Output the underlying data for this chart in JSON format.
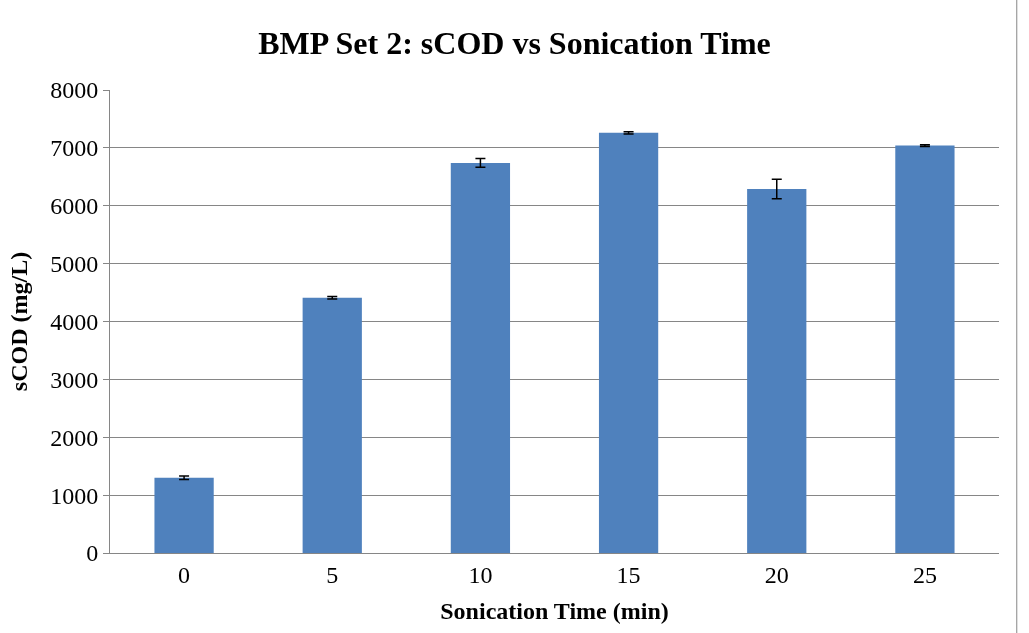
{
  "chart_data": {
    "type": "bar",
    "title": "BMP Set 2: sCOD vs Sonication Time",
    "xlabel": "Sonication Time (min)",
    "ylabel": "sCOD (mg/L)",
    "categories": [
      "0",
      "5",
      "10",
      "15",
      "20",
      "25"
    ],
    "values": [
      1300,
      4410,
      6740,
      7260,
      6290,
      7040
    ],
    "errors": [
      30,
      20,
      75,
      20,
      170,
      15
    ],
    "color": "#4f81bd",
    "ylim": [
      0,
      8000
    ],
    "yticks": [
      0,
      1000,
      2000,
      3000,
      4000,
      5000,
      6000,
      7000,
      8000
    ],
    "grid": "y"
  }
}
